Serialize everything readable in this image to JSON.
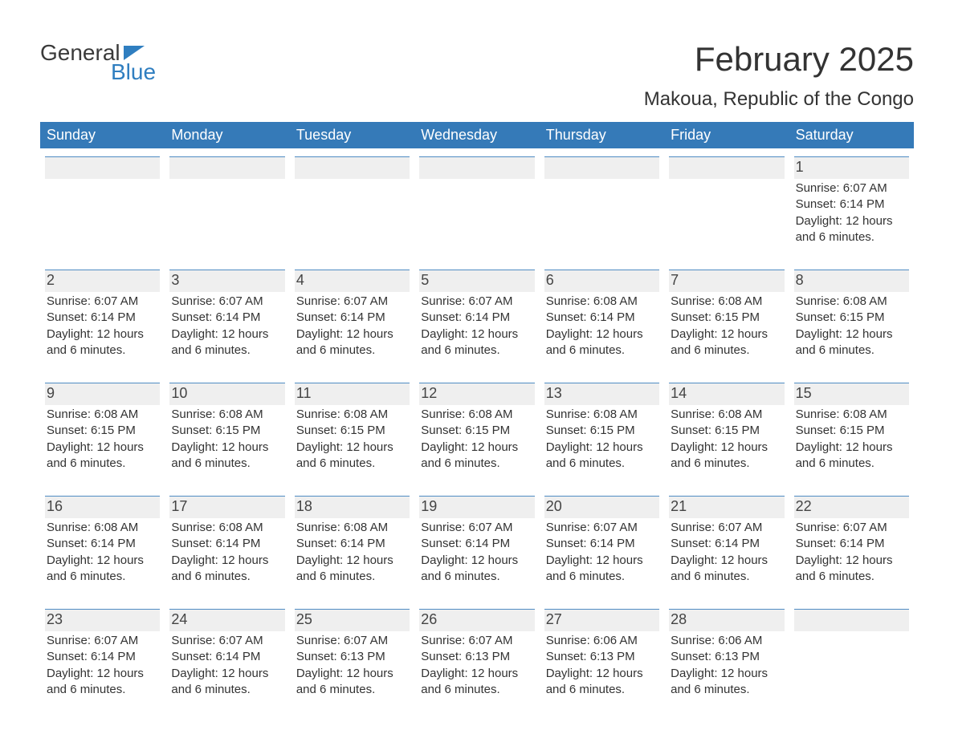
{
  "brand": {
    "general": "General",
    "blue": "Blue",
    "general_color": "#3a3a3a",
    "blue_color": "#2f7ec0",
    "flag_color": "#2f7ec0"
  },
  "header": {
    "month_title": "February 2025",
    "location": "Makoua, Republic of the Congo",
    "title_color": "#333333"
  },
  "calendar": {
    "header_bg": "#357ab8",
    "header_text_color": "#ffffff",
    "daynum_bg": "#efefef",
    "daynum_border": "#4f8cc3",
    "body_text_color": "#333333",
    "weekdays": [
      "Sunday",
      "Monday",
      "Tuesday",
      "Wednesday",
      "Thursday",
      "Friday",
      "Saturday"
    ],
    "weeks": [
      [
        {
          "day": "",
          "empty": true
        },
        {
          "day": "",
          "empty": true
        },
        {
          "day": "",
          "empty": true
        },
        {
          "day": "",
          "empty": true
        },
        {
          "day": "",
          "empty": true
        },
        {
          "day": "",
          "empty": true
        },
        {
          "day": "1",
          "sunrise": "Sunrise: 6:07 AM",
          "sunset": "Sunset: 6:14 PM",
          "daylight1": "Daylight: 12 hours",
          "daylight2": "and 6 minutes."
        }
      ],
      [
        {
          "day": "2",
          "sunrise": "Sunrise: 6:07 AM",
          "sunset": "Sunset: 6:14 PM",
          "daylight1": "Daylight: 12 hours",
          "daylight2": "and 6 minutes."
        },
        {
          "day": "3",
          "sunrise": "Sunrise: 6:07 AM",
          "sunset": "Sunset: 6:14 PM",
          "daylight1": "Daylight: 12 hours",
          "daylight2": "and 6 minutes."
        },
        {
          "day": "4",
          "sunrise": "Sunrise: 6:07 AM",
          "sunset": "Sunset: 6:14 PM",
          "daylight1": "Daylight: 12 hours",
          "daylight2": "and 6 minutes."
        },
        {
          "day": "5",
          "sunrise": "Sunrise: 6:07 AM",
          "sunset": "Sunset: 6:14 PM",
          "daylight1": "Daylight: 12 hours",
          "daylight2": "and 6 minutes."
        },
        {
          "day": "6",
          "sunrise": "Sunrise: 6:08 AM",
          "sunset": "Sunset: 6:14 PM",
          "daylight1": "Daylight: 12 hours",
          "daylight2": "and 6 minutes."
        },
        {
          "day": "7",
          "sunrise": "Sunrise: 6:08 AM",
          "sunset": "Sunset: 6:15 PM",
          "daylight1": "Daylight: 12 hours",
          "daylight2": "and 6 minutes."
        },
        {
          "day": "8",
          "sunrise": "Sunrise: 6:08 AM",
          "sunset": "Sunset: 6:15 PM",
          "daylight1": "Daylight: 12 hours",
          "daylight2": "and 6 minutes."
        }
      ],
      [
        {
          "day": "9",
          "sunrise": "Sunrise: 6:08 AM",
          "sunset": "Sunset: 6:15 PM",
          "daylight1": "Daylight: 12 hours",
          "daylight2": "and 6 minutes."
        },
        {
          "day": "10",
          "sunrise": "Sunrise: 6:08 AM",
          "sunset": "Sunset: 6:15 PM",
          "daylight1": "Daylight: 12 hours",
          "daylight2": "and 6 minutes."
        },
        {
          "day": "11",
          "sunrise": "Sunrise: 6:08 AM",
          "sunset": "Sunset: 6:15 PM",
          "daylight1": "Daylight: 12 hours",
          "daylight2": "and 6 minutes."
        },
        {
          "day": "12",
          "sunrise": "Sunrise: 6:08 AM",
          "sunset": "Sunset: 6:15 PM",
          "daylight1": "Daylight: 12 hours",
          "daylight2": "and 6 minutes."
        },
        {
          "day": "13",
          "sunrise": "Sunrise: 6:08 AM",
          "sunset": "Sunset: 6:15 PM",
          "daylight1": "Daylight: 12 hours",
          "daylight2": "and 6 minutes."
        },
        {
          "day": "14",
          "sunrise": "Sunrise: 6:08 AM",
          "sunset": "Sunset: 6:15 PM",
          "daylight1": "Daylight: 12 hours",
          "daylight2": "and 6 minutes."
        },
        {
          "day": "15",
          "sunrise": "Sunrise: 6:08 AM",
          "sunset": "Sunset: 6:15 PM",
          "daylight1": "Daylight: 12 hours",
          "daylight2": "and 6 minutes."
        }
      ],
      [
        {
          "day": "16",
          "sunrise": "Sunrise: 6:08 AM",
          "sunset": "Sunset: 6:14 PM",
          "daylight1": "Daylight: 12 hours",
          "daylight2": "and 6 minutes."
        },
        {
          "day": "17",
          "sunrise": "Sunrise: 6:08 AM",
          "sunset": "Sunset: 6:14 PM",
          "daylight1": "Daylight: 12 hours",
          "daylight2": "and 6 minutes."
        },
        {
          "day": "18",
          "sunrise": "Sunrise: 6:08 AM",
          "sunset": "Sunset: 6:14 PM",
          "daylight1": "Daylight: 12 hours",
          "daylight2": "and 6 minutes."
        },
        {
          "day": "19",
          "sunrise": "Sunrise: 6:07 AM",
          "sunset": "Sunset: 6:14 PM",
          "daylight1": "Daylight: 12 hours",
          "daylight2": "and 6 minutes."
        },
        {
          "day": "20",
          "sunrise": "Sunrise: 6:07 AM",
          "sunset": "Sunset: 6:14 PM",
          "daylight1": "Daylight: 12 hours",
          "daylight2": "and 6 minutes."
        },
        {
          "day": "21",
          "sunrise": "Sunrise: 6:07 AM",
          "sunset": "Sunset: 6:14 PM",
          "daylight1": "Daylight: 12 hours",
          "daylight2": "and 6 minutes."
        },
        {
          "day": "22",
          "sunrise": "Sunrise: 6:07 AM",
          "sunset": "Sunset: 6:14 PM",
          "daylight1": "Daylight: 12 hours",
          "daylight2": "and 6 minutes."
        }
      ],
      [
        {
          "day": "23",
          "sunrise": "Sunrise: 6:07 AM",
          "sunset": "Sunset: 6:14 PM",
          "daylight1": "Daylight: 12 hours",
          "daylight2": "and 6 minutes."
        },
        {
          "day": "24",
          "sunrise": "Sunrise: 6:07 AM",
          "sunset": "Sunset: 6:14 PM",
          "daylight1": "Daylight: 12 hours",
          "daylight2": "and 6 minutes."
        },
        {
          "day": "25",
          "sunrise": "Sunrise: 6:07 AM",
          "sunset": "Sunset: 6:13 PM",
          "daylight1": "Daylight: 12 hours",
          "daylight2": "and 6 minutes."
        },
        {
          "day": "26",
          "sunrise": "Sunrise: 6:07 AM",
          "sunset": "Sunset: 6:13 PM",
          "daylight1": "Daylight: 12 hours",
          "daylight2": "and 6 minutes."
        },
        {
          "day": "27",
          "sunrise": "Sunrise: 6:06 AM",
          "sunset": "Sunset: 6:13 PM",
          "daylight1": "Daylight: 12 hours",
          "daylight2": "and 6 minutes."
        },
        {
          "day": "28",
          "sunrise": "Sunrise: 6:06 AM",
          "sunset": "Sunset: 6:13 PM",
          "daylight1": "Daylight: 12 hours",
          "daylight2": "and 6 minutes."
        },
        {
          "day": "",
          "empty": true
        }
      ]
    ]
  }
}
